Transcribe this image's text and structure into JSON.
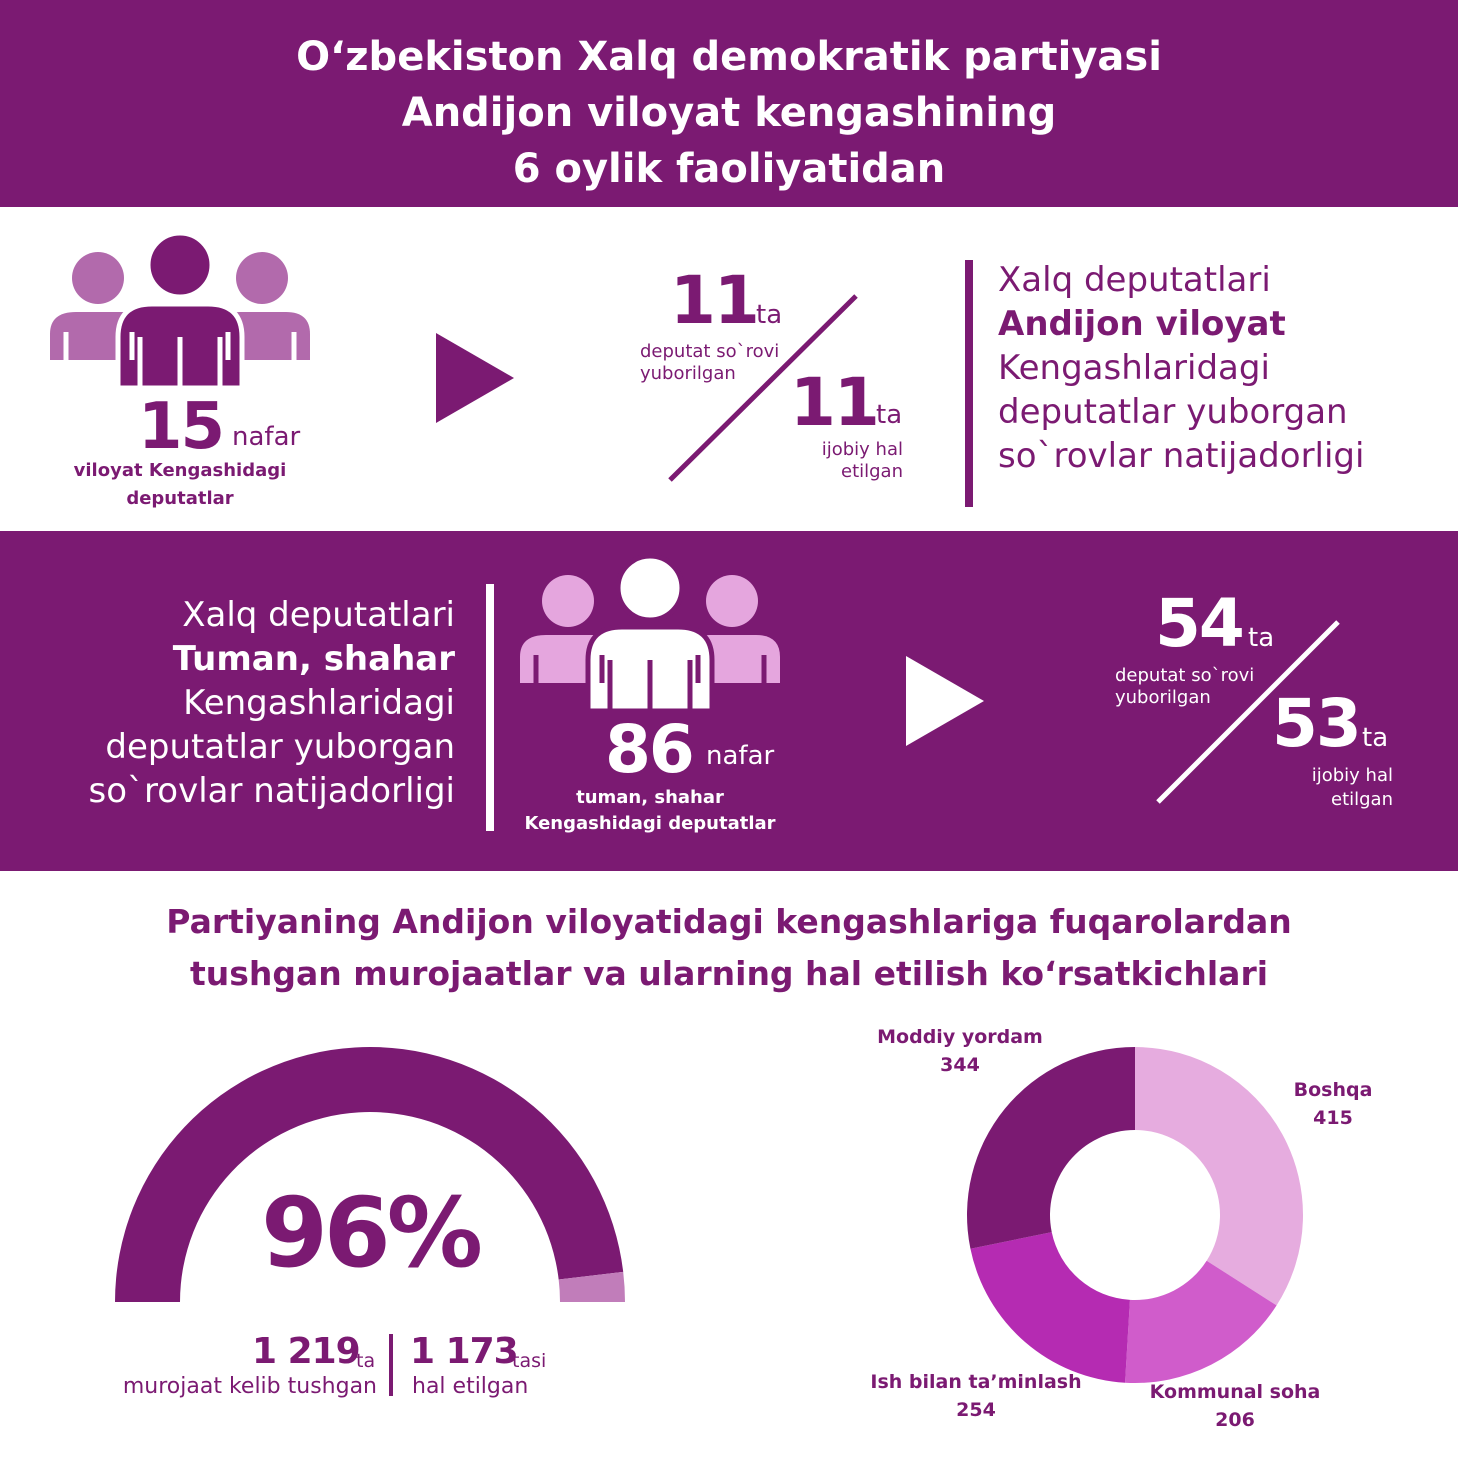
{
  "header": {
    "title_lines": [
      "O‘zbekiston Xalq demokratik partiyasi",
      "Andijon viloyat kengashining",
      "6 oylik faoliyatidan"
    ]
  },
  "regional": {
    "deputies_count": "15",
    "deputies_unit": "nafar",
    "deputies_label_1": "viloyat Kengashidagi",
    "deputies_label_2": "deputatlar",
    "requests_sent": "11",
    "requests_sent_unit": "ta",
    "requests_sent_label_1": "deputat so`rovi",
    "requests_sent_label_2": "yuborilgan",
    "requests_solved": "11",
    "requests_solved_unit": "ta",
    "requests_solved_label_1": "ijobiy hal",
    "requests_solved_label_2": "etilgan",
    "desc_1": "Xalq deputatlari",
    "desc_2": "Andijon viloyat",
    "desc_3": "Kengashlaridagi",
    "desc_4": "deputatlar yuborgan",
    "desc_5": "so`rovlar natijadorligi"
  },
  "district": {
    "desc_1": "Xalq deputatlari",
    "desc_2": "Tuman, shahar",
    "desc_3": "Kengashlaridagi",
    "desc_4": "deputatlar yuborgan",
    "desc_5": "so`rovlar natijadorligi",
    "deputies_count": "86",
    "deputies_unit": "nafar",
    "deputies_label_1": "tuman, shahar",
    "deputies_label_2": "Kengashidagi deputatlar",
    "requests_sent": "54",
    "requests_sent_unit": "ta",
    "requests_sent_label_1": "deputat so`rovi",
    "requests_sent_label_2": "yuborilgan",
    "requests_solved": "53",
    "requests_solved_unit": "ta",
    "requests_solved_label_1": "ijobiy hal",
    "requests_solved_label_2": "etilgan"
  },
  "appeals": {
    "heading_1": "Partiyaning Andijon viloyatidagi kengashlariga fuqarolardan",
    "heading_2": "tushgan murojaatlar va ularning hal etilish ko‘rsatkichlari",
    "percent": "96%",
    "received": "1 219",
    "received_unit": "ta",
    "received_label": "murojaat kelib tushgan",
    "resolved": "1 173",
    "resolved_unit": "tasi",
    "resolved_label": "hal etilgan"
  },
  "colors": {
    "primary": "#7b1a72",
    "icon_light": "#b26aac",
    "icon_pale": "#e5a6de",
    "gauge_rest": "#c17dba",
    "pie_boshqa": "#e6acdf",
    "pie_kommunal": "#d05ccb",
    "pie_ish": "#b52bb2",
    "pie_moddiy": "#7b1a72"
  },
  "chart_data": [
    {
      "type": "gauge",
      "title": "",
      "categories": [
        "hal etilgan",
        "qolgan"
      ],
      "values": [
        1173,
        46
      ],
      "total": 1219,
      "percent": 96
    },
    {
      "type": "pie",
      "title": "",
      "donut": true,
      "categories": [
        "Boshqa",
        "Kommunal soha",
        "Ish bilan ta’minlash",
        "Moddiy yordam"
      ],
      "values": [
        415,
        206,
        254,
        344
      ],
      "colors": [
        "#e6acdf",
        "#d05ccb",
        "#b52bb2",
        "#7b1a72"
      ]
    }
  ]
}
